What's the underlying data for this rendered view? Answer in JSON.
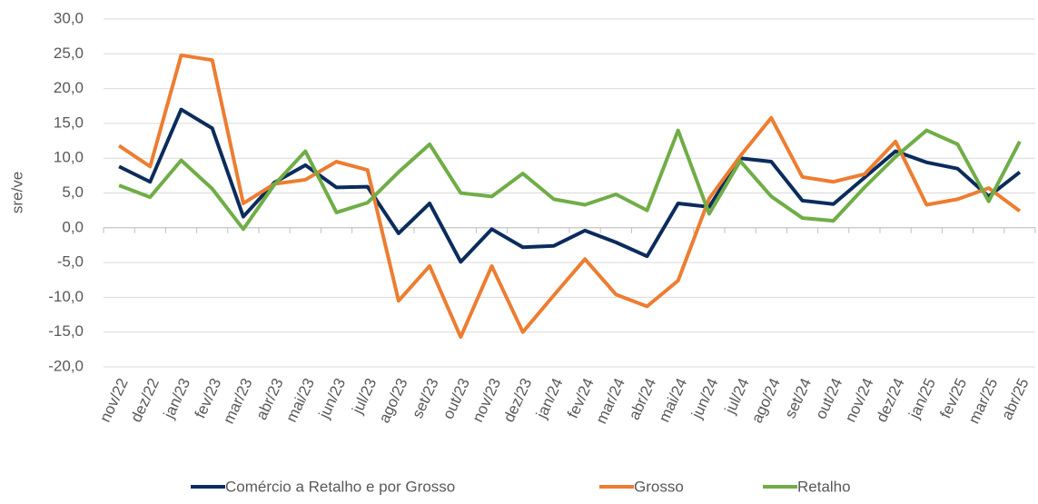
{
  "chart_data": {
    "type": "line",
    "y_label": "sre/ve",
    "categories": [
      "nov/22",
      "dez/22",
      "jan/23",
      "fev/23",
      "mar/23",
      "abr/23",
      "mai/23",
      "jun/23",
      "jul/23",
      "ago/23",
      "set/23",
      "out/23",
      "nov/23",
      "dez/23",
      "jan/24",
      "fev/24",
      "mar/24",
      "abr/24",
      "mai/24",
      "jun/24",
      "jul/24",
      "ago/24",
      "set/24",
      "out/24",
      "nov/24",
      "dez/24",
      "jan/25",
      "fev/25",
      "mar/25",
      "abr/25"
    ],
    "series": [
      {
        "name": "Comércio a Retalho e por Grosso",
        "color": "#0b2c5c",
        "values": [
          8.8,
          6.6,
          17.0,
          14.3,
          1.6,
          6.5,
          9.0,
          5.8,
          5.9,
          -0.8,
          3.5,
          -4.9,
          -0.2,
          -2.8,
          -2.6,
          -0.4,
          -2.1,
          -4.1,
          3.5,
          3.0,
          10.0,
          9.5,
          3.9,
          3.4,
          7.2,
          11.0,
          9.4,
          8.5,
          4.5,
          8.0
        ]
      },
      {
        "name": "Grosso",
        "color": "#ed7d31",
        "values": [
          11.8,
          8.8,
          24.8,
          24.1,
          3.5,
          6.3,
          6.9,
          9.5,
          8.3,
          -10.5,
          -5.5,
          -15.7,
          -5.5,
          -15.0,
          -9.7,
          -4.5,
          -9.6,
          -11.3,
          -7.6,
          4.2,
          10.3,
          15.8,
          7.3,
          6.6,
          7.7,
          12.4,
          3.3,
          4.1,
          5.7,
          2.4
        ]
      },
      {
        "name": "Retalho",
        "color": "#70ad47",
        "values": [
          6.1,
          4.4,
          9.7,
          5.6,
          -0.2,
          6.2,
          11.0,
          2.2,
          3.6,
          8.0,
          12.0,
          5.0,
          4.5,
          7.8,
          4.1,
          3.3,
          4.8,
          2.5,
          14.0,
          2.0,
          9.6,
          4.5,
          1.4,
          1.0,
          5.8,
          10.2,
          14.0,
          12.0,
          3.8,
          12.4
        ]
      }
    ],
    "ylim": [
      -20,
      30
    ],
    "yticks": [
      {
        "value": -20,
        "label": "-20,0"
      },
      {
        "value": -15,
        "label": "-15,0"
      },
      {
        "value": -10,
        "label": "-10,0"
      },
      {
        "value": -5,
        "label": "-5,0"
      },
      {
        "value": 0,
        "label": "0,0"
      },
      {
        "value": 5,
        "label": "5,0"
      },
      {
        "value": 10,
        "label": "10,0"
      },
      {
        "value": 15,
        "label": "15,0"
      },
      {
        "value": 20,
        "label": "20,0"
      },
      {
        "value": 25,
        "label": "25,0"
      },
      {
        "value": 30,
        "label": "30,0"
      }
    ],
    "grid": true,
    "legend": "bottom"
  }
}
